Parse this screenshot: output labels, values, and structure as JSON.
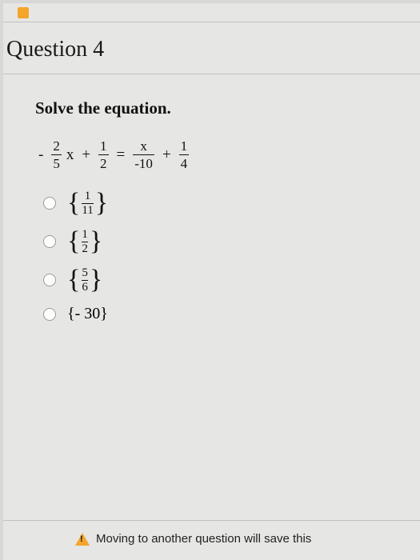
{
  "question": {
    "header": "Question 4",
    "prompt": "Solve the equation."
  },
  "equation": {
    "t1": {
      "sign": "-",
      "num": "2",
      "den": "5",
      "var": "x"
    },
    "op1": "+",
    "t2": {
      "num": "1",
      "den": "2"
    },
    "eq": "=",
    "t3": {
      "num": "x",
      "den": "-10"
    },
    "op2": "+",
    "t4": {
      "num": "1",
      "den": "4"
    }
  },
  "options": [
    {
      "kind": "frac",
      "num": "1",
      "den": "11"
    },
    {
      "kind": "frac",
      "num": "1",
      "den": "2"
    },
    {
      "kind": "frac",
      "num": "5",
      "den": "6"
    },
    {
      "kind": "plain",
      "text": "{- 30}"
    }
  ],
  "footer": {
    "text": "Moving to another question will save this"
  },
  "colors": {
    "page_bg": "#e6e6e4",
    "text": "#111111",
    "divider": "#c0c0be",
    "radio_border": "#9a9a98",
    "warn": "#f4a52a"
  }
}
